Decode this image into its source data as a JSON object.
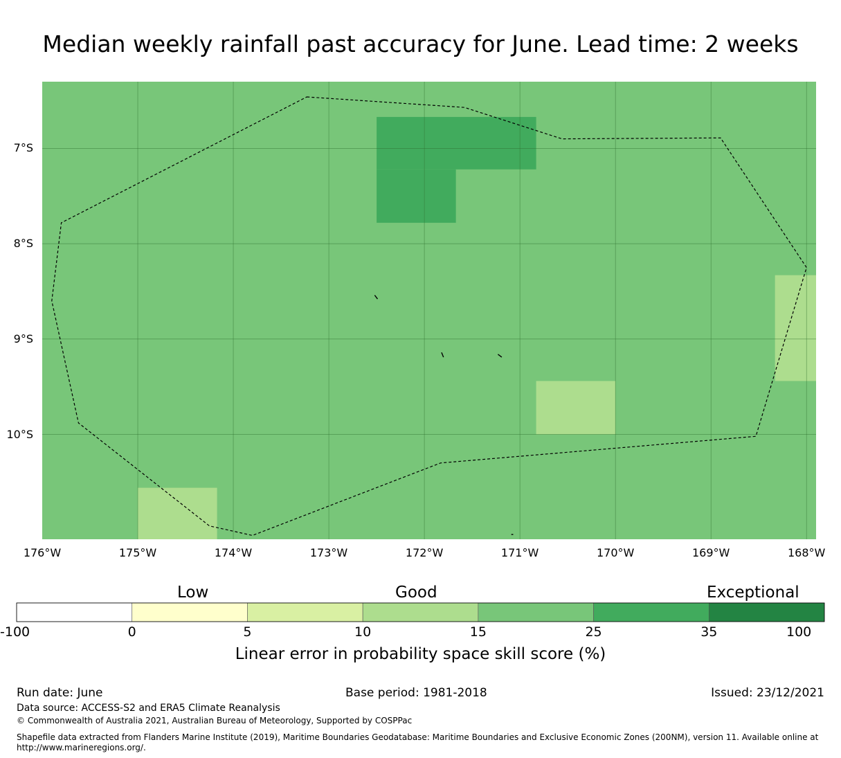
{
  "title": "Median weekly rainfall past accuracy for June. Lead time: 2 weeks",
  "map": {
    "lon_range": [
      -176,
      -167.9
    ],
    "lat_range": [
      -11.1,
      -6.3
    ],
    "background_category": "15-25",
    "lat_ticks": [
      {
        "value": -7,
        "label": "7°S"
      },
      {
        "value": -8,
        "label": "8°S"
      },
      {
        "value": -9,
        "label": "9°S"
      },
      {
        "value": -10,
        "label": "10°S"
      }
    ],
    "lon_ticks": [
      {
        "value": -176,
        "label": "176°W"
      },
      {
        "value": -175,
        "label": "175°W"
      },
      {
        "value": -174,
        "label": "174°W"
      },
      {
        "value": -173,
        "label": "173°W"
      },
      {
        "value": -172,
        "label": "172°W"
      },
      {
        "value": -171,
        "label": "171°W"
      },
      {
        "value": -170,
        "label": "170°W"
      },
      {
        "value": -169,
        "label": "169°W"
      },
      {
        "value": -168,
        "label": "168°W"
      }
    ],
    "cells": [
      {
        "lon": [
          -172.5,
          -170.83
        ],
        "lat": [
          -6.67,
          -7.22
        ],
        "category": "25-35"
      },
      {
        "lon": [
          -172.5,
          -171.67
        ],
        "lat": [
          -7.22,
          -7.78
        ],
        "category": "25-35"
      },
      {
        "lon": [
          -170.83,
          -170.0
        ],
        "lat": [
          -9.44,
          -10.0
        ],
        "category": "10-15"
      },
      {
        "lon": [
          -168.33,
          -167.9
        ],
        "lat": [
          -8.33,
          -9.44
        ],
        "category": "10-15"
      },
      {
        "lon": [
          -175.0,
          -174.17
        ],
        "lat": [
          -10.56,
          -11.1
        ],
        "category": "10-15"
      }
    ],
    "eez_boundary": [
      [
        -173.23,
        -6.46
      ],
      [
        -171.58,
        -6.57
      ],
      [
        -170.56,
        -6.9
      ],
      [
        -168.9,
        -6.89
      ],
      [
        -168.0,
        -8.25
      ],
      [
        -168.53,
        -10.02
      ],
      [
        -171.83,
        -10.3
      ],
      [
        -173.8,
        -11.06
      ],
      [
        -174.25,
        -10.96
      ],
      [
        -175.62,
        -9.88
      ],
      [
        -175.9,
        -8.6
      ],
      [
        -175.8,
        -7.78
      ]
    ],
    "islands": [
      [
        [
          -172.52,
          -8.54
        ],
        [
          -172.49,
          -8.58
        ]
      ],
      [
        [
          -171.82,
          -9.14
        ],
        [
          -171.8,
          -9.19
        ]
      ],
      [
        [
          -171.23,
          -9.16
        ],
        [
          -171.19,
          -9.19
        ]
      ],
      [
        [
          -171.09,
          -11.05
        ],
        [
          -171.07,
          -11.05
        ]
      ]
    ]
  },
  "colorbar": {
    "category_labels": [
      "Low",
      "Good",
      "Exceptional"
    ],
    "ticks": [
      "-100",
      "0",
      "5",
      "10",
      "15",
      "25",
      "35",
      "100"
    ],
    "colors": [
      "#ffffff",
      "#ffffcc",
      "#d9f0a3",
      "#addd8e",
      "#78c679",
      "#41ab5d",
      "#238443"
    ],
    "caption": "Linear error in probability space skill score (%)"
  },
  "category_colors": {
    "10-15": "#addd8e",
    "15-25": "#78c679",
    "25-35": "#41ab5d"
  },
  "footer": {
    "run_date": "Run date: June",
    "base_period": "Base period: 1981-2018",
    "issued": "Issued: 23/12/2021",
    "data_source": "Data source: ACCESS-S2 and ERA5 Climate Reanalysis",
    "copyright": "© Commonwealth of Australia 2021, Australian Bureau of Meteorology, Supported by COSPPac",
    "shapefile_line1": "Shapefile data extracted from Flanders Marine Institute (2019), Maritime Boundaries Geodatabase: Maritime Boundaries and Exclusive Economic Zones (200NM), version 11. Available online at",
    "shapefile_line2": "http://www.marineregions.org/."
  }
}
